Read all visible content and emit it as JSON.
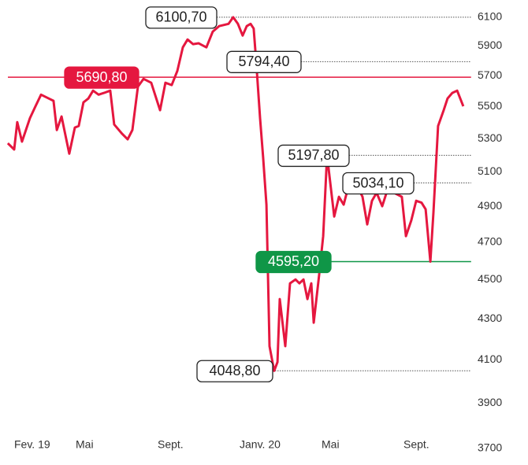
{
  "chart_data": {
    "type": "line",
    "log_scale": true,
    "xlim": [
      -0.4,
      22.3
    ],
    "xticks": [
      {
        "value": 0,
        "label": "Fev. 19"
      },
      {
        "value": 3,
        "label": "Mai"
      },
      {
        "value": 7,
        "label": "Sept."
      },
      {
        "value": 11,
        "label": "Janv. 20"
      },
      {
        "value": 15,
        "label": "Mai"
      },
      {
        "value": 19,
        "label": "Sept."
      }
    ],
    "ylim": [
      3700,
      6100
    ],
    "yticks": [
      3700,
      3900,
      4100,
      4300,
      4500,
      4700,
      4900,
      5100,
      5300,
      5500,
      5700,
      5900,
      6100
    ],
    "series": [
      {
        "color": "#e5173f",
        "x": [
          -0.31,
          0,
          0.15,
          0.38,
          0.77,
          1.04,
          1.31,
          1.69,
          1.92,
          2.08,
          2.31,
          2.69,
          2.96,
          3.15,
          3.38,
          3.62,
          3.85,
          4.12,
          4.38,
          4.69,
          4.88,
          5.27,
          5.54,
          5.77,
          6.04,
          6.31,
          6.69,
          7.12,
          7.38,
          7.69,
          7.96,
          8.23,
          8.46,
          8.73,
          9.0,
          9.38,
          9.69,
          10.0,
          10.46,
          10.69,
          10.92,
          11.15,
          11.35,
          11.54,
          11.69,
          11.81,
          12.0,
          12.15,
          12.31,
          12.46,
          12.69,
          12.85,
          12.96,
          13.23,
          13.46,
          13.73,
          13.92,
          14.12,
          14.31,
          14.5,
          14.62,
          14.88,
          15.08,
          15.27,
          15.46,
          15.62,
          15.85,
          16.08,
          16.23,
          16.54,
          16.81,
          17.0,
          17.23,
          17.46,
          17.69,
          17.96,
          18.23,
          18.54,
          18.92,
          19.12,
          19.38,
          19.62,
          19.88,
          20.08,
          20.31,
          20.46,
          20.69,
          20.96,
          21.15,
          21.38,
          21.62,
          21.92
        ],
        "values": [
          5271,
          5233,
          5402,
          5281,
          5427,
          5502,
          5577,
          5552,
          5537,
          5353,
          5437,
          5208,
          5368,
          5378,
          5527,
          5552,
          5603,
          5577,
          5588,
          5603,
          5387,
          5329,
          5295,
          5353,
          5629,
          5680,
          5654,
          5477,
          5654,
          5639,
          5732,
          5891,
          5945,
          5913,
          5919,
          5891,
          5999,
          6038,
          6054,
          6100.7,
          6054,
          5972,
          6038,
          6054,
          6021,
          5794.4,
          5427,
          5185,
          4909,
          4166,
          4048.8,
          4090,
          4400,
          4166,
          4481,
          4501,
          4481,
          4501,
          4400,
          4481,
          4281,
          4522,
          4733,
          5197.8,
          4999,
          4842,
          4954,
          4909,
          4977,
          5034.1,
          4999,
          4954,
          4798,
          4931,
          4977,
          4900,
          4999,
          4977,
          4954,
          4733,
          4820,
          4931,
          4920,
          4883,
          4595.2,
          4864,
          5378,
          5477,
          5552,
          5588,
          5603,
          5502
        ]
      }
    ],
    "annotations": [
      {
        "value": 6100.7,
        "label": "6100,70"
      },
      {
        "value": 5794.4,
        "label": "5794,40"
      },
      {
        "value": 5690.8,
        "label": "5690,80",
        "color": "#e5173f"
      },
      {
        "value": 5197.8,
        "label": "5197,80"
      },
      {
        "value": 5034.1,
        "label": "5034,10"
      },
      {
        "value": 4595.2,
        "label": "4595,20",
        "color": "#0f9647"
      },
      {
        "value": 4048.8,
        "label": "4048,80"
      }
    ]
  }
}
